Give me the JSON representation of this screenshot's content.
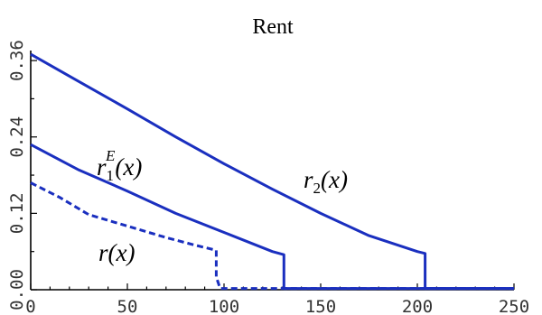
{
  "chart_data": {
    "type": "line",
    "title": "Rent",
    "xlabel": "",
    "ylabel": "",
    "xlim": [
      0,
      250
    ],
    "ylim": [
      0,
      0.38
    ],
    "x_ticks": [
      0,
      50,
      100,
      150,
      200,
      250
    ],
    "x_tick_labels": [
      "0",
      "50",
      "100",
      "150",
      "200",
      "250"
    ],
    "y_ticks": [
      0,
      0.12,
      0.24,
      0.36
    ],
    "y_tick_labels": [
      "0.00",
      "0.12",
      "0.24",
      "0.36"
    ],
    "y_minor_ticks": [
      0.06,
      0.18,
      0.3
    ],
    "series": [
      {
        "style": "solid",
        "color": "#1a2fbf",
        "annotation": [
          "r",
          "2",
          "(x)"
        ],
        "x": [
          0,
          25,
          50,
          75,
          100,
          125,
          150,
          175,
          200,
          204,
          204,
          250
        ],
        "y": [
          0.37,
          0.327,
          0.284,
          0.24,
          0.198,
          0.158,
          0.12,
          0.085,
          0.06,
          0.057,
          0.002,
          0.002
        ]
      },
      {
        "style": "solid",
        "color": "#1a2fbf",
        "annotation": [
          "r",
          "1",
          "E",
          "(x)"
        ],
        "x": [
          0,
          25,
          50,
          75,
          100,
          125,
          131,
          131,
          250
        ],
        "y": [
          0.228,
          0.188,
          0.155,
          0.12,
          0.09,
          0.06,
          0.055,
          0.002,
          0.002
        ]
      },
      {
        "style": "dashed",
        "color": "#1a2fbf",
        "annotation": [
          "r",
          "(x)"
        ],
        "x": [
          0,
          15,
          30,
          50,
          70,
          85,
          96,
          96,
          98,
          250
        ],
        "y": [
          0.168,
          0.145,
          0.118,
          0.1,
          0.082,
          0.07,
          0.062,
          0.02,
          0.002,
          0.002
        ]
      }
    ]
  }
}
